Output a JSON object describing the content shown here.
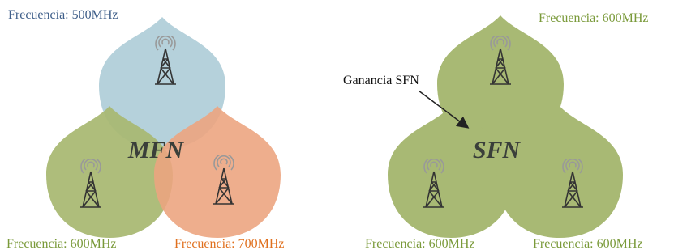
{
  "mfn": {
    "label": "MFN",
    "cells": [
      {
        "frequency": "Frecuencia: 500MHz"
      },
      {
        "frequency": "Frecuencia: 600MHz"
      },
      {
        "frequency": "Frecuencia: 700MHz"
      }
    ]
  },
  "sfn": {
    "label": "SFN",
    "annotation": "Ganancia SFN",
    "cells": [
      {
        "frequency": "Frecuencia: 600MHz"
      },
      {
        "frequency": "Frecuencia: 600MHz"
      },
      {
        "frequency": "Frecuencia: 600MHz"
      }
    ]
  }
}
